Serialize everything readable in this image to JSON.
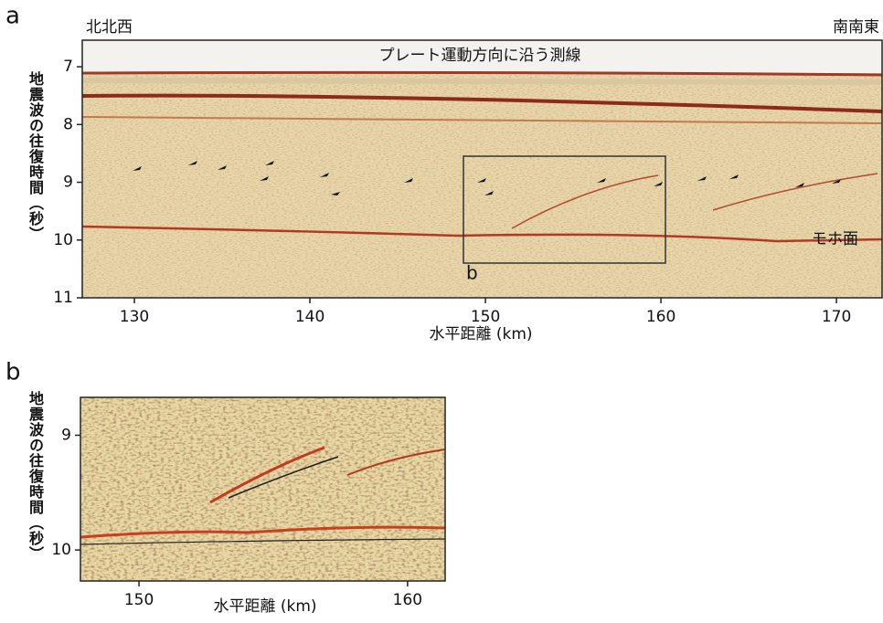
{
  "panel_a": {
    "label": "a",
    "left_label": "北北西",
    "right_label": "南南東",
    "title": "プレート運動方向に沿う測線",
    "y_label": "地震波の往復時間（秒）",
    "x_label": "水平距離 (km)",
    "xlim": [
      127.03,
      172.6
    ],
    "ylim": [
      6.54,
      11
    ],
    "xticks": [
      130,
      140,
      150,
      160,
      170
    ],
    "yticks": [
      7,
      8,
      9,
      10,
      11
    ],
    "moho_label": "モホ面",
    "inset_label": "b"
  },
  "panel_b": {
    "label": "b",
    "y_label": "地震波の往復時間（秒）",
    "x_label": "水平距離 (km)",
    "xlim": [
      147.82,
      161.4
    ],
    "ylim": [
      8.67,
      10.27
    ],
    "xticks": [
      150,
      160
    ],
    "yticks": [
      9,
      10
    ]
  }
}
